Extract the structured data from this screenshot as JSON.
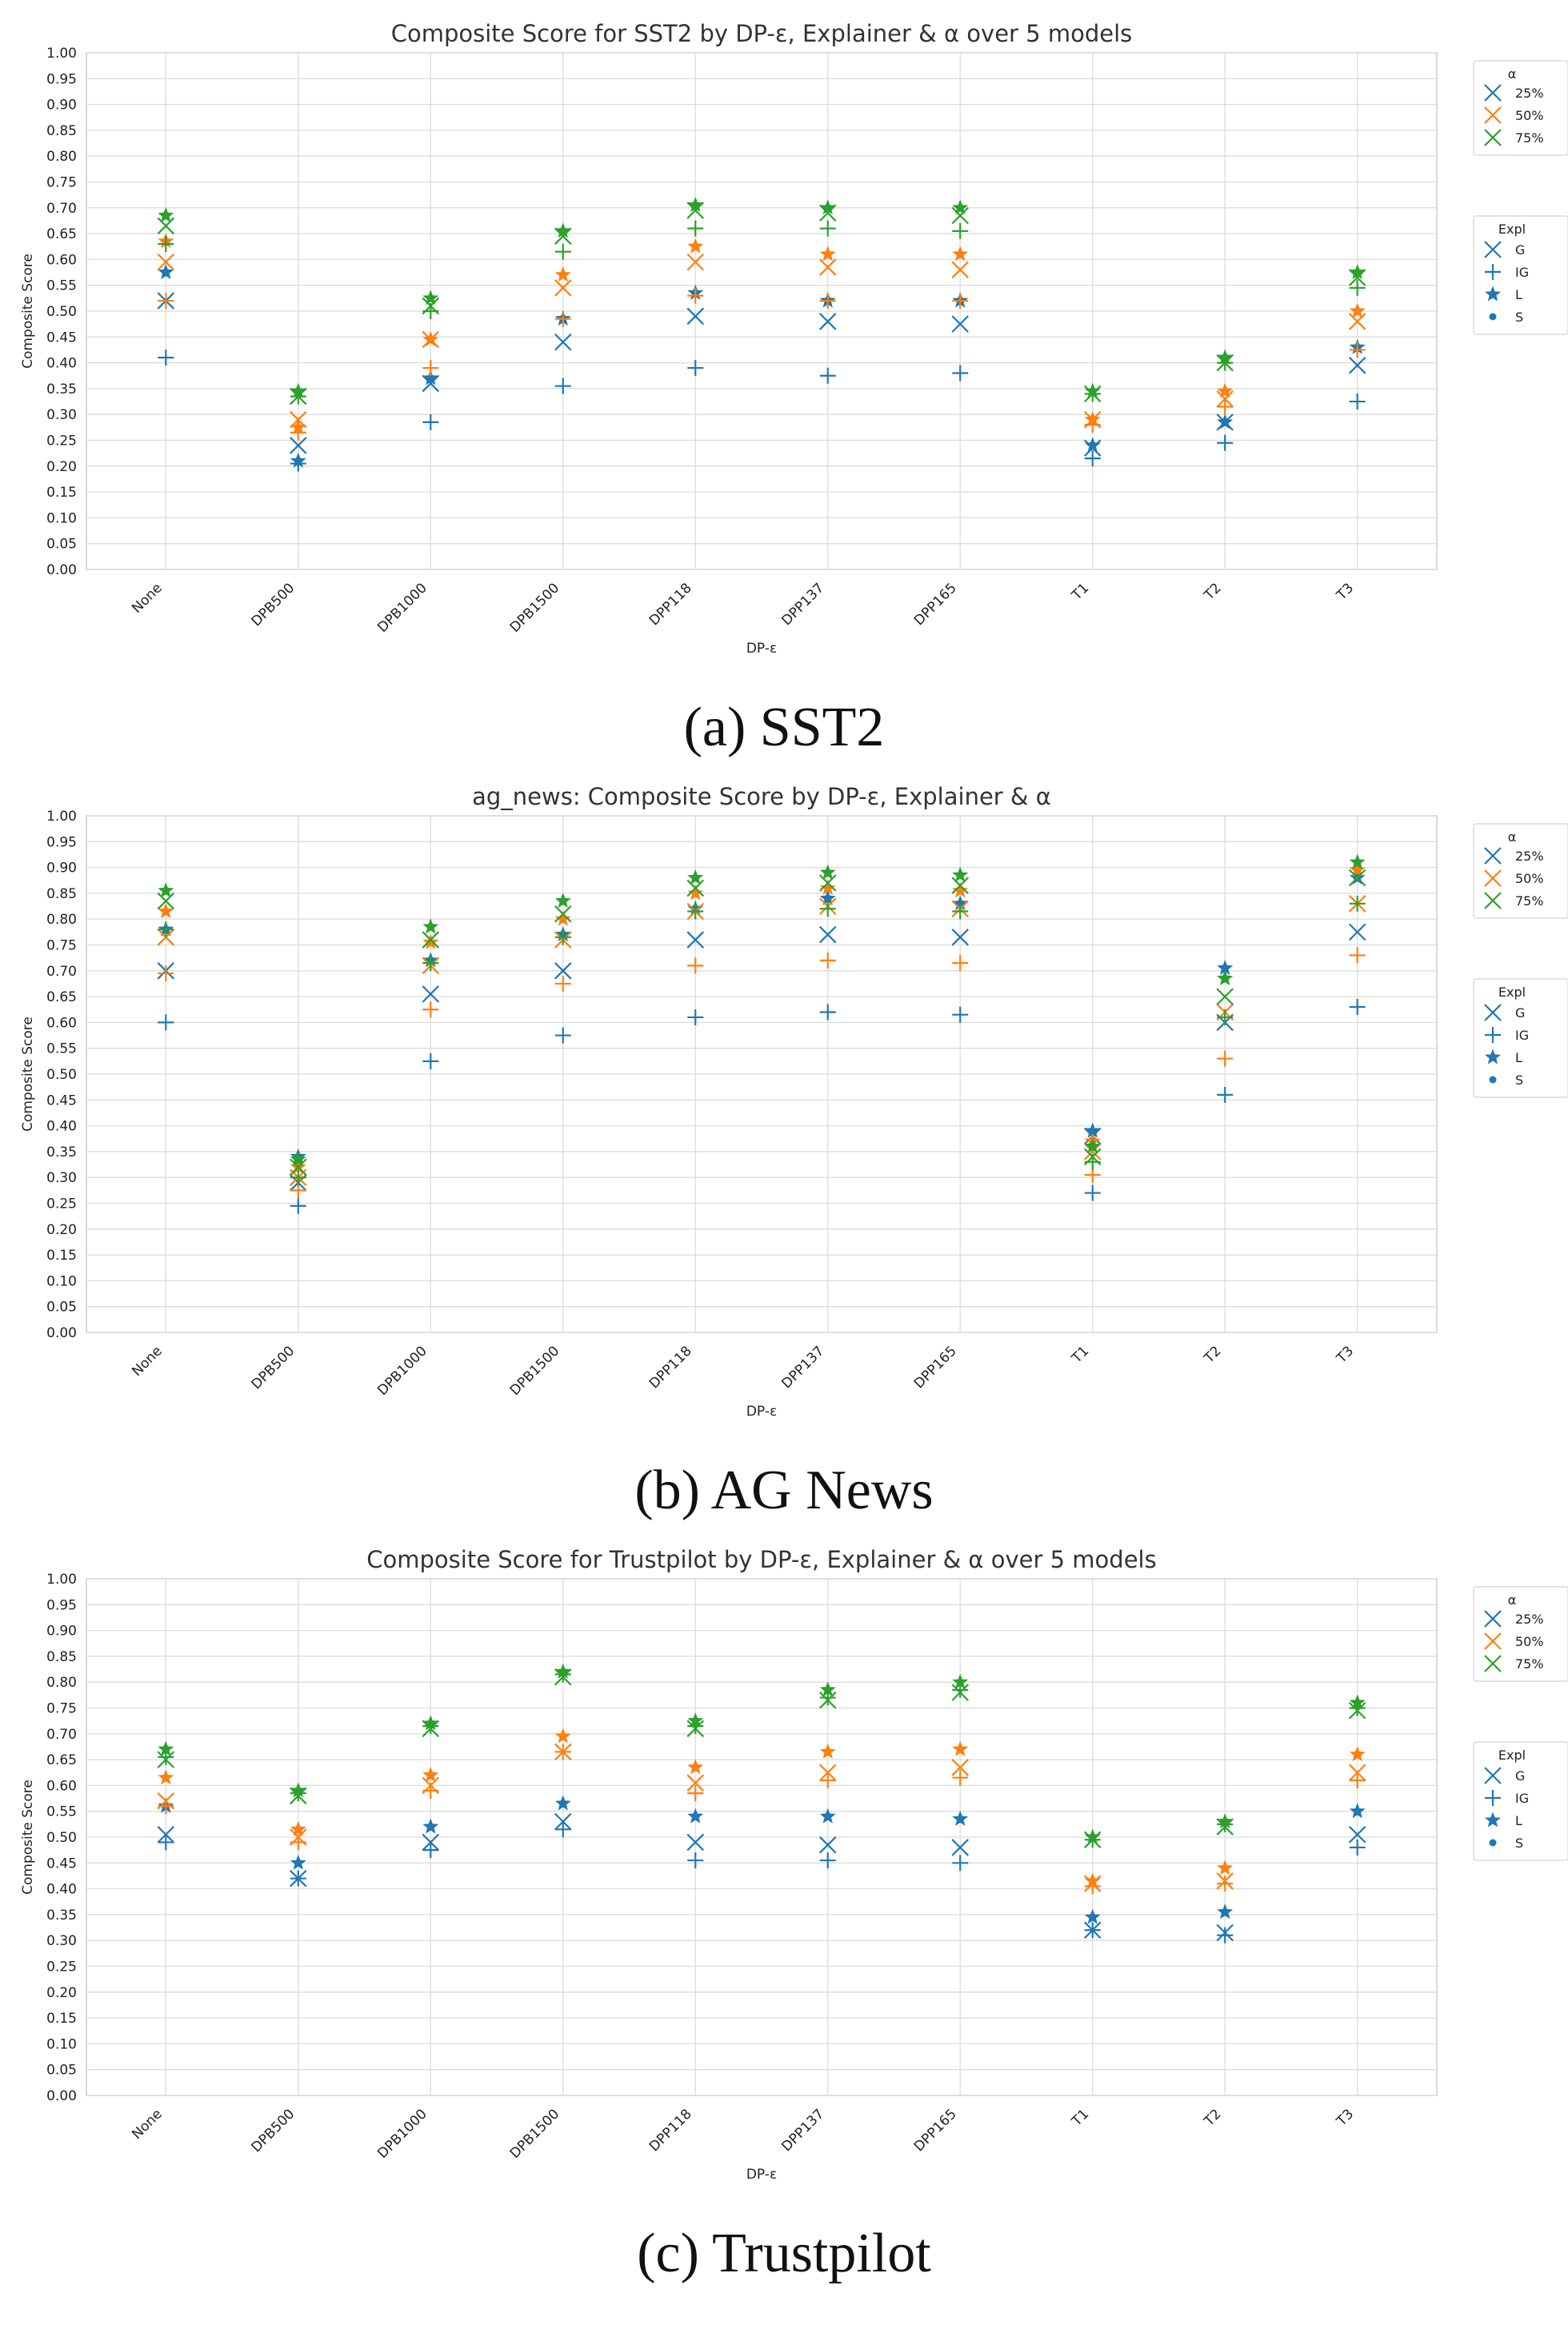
{
  "colors": {
    "25%": "#1f77b4",
    "50%": "#ff7f0e",
    "75%": "#2ca02c"
  },
  "panels": [
    {
      "caption": "(a)  SST2",
      "legend_alpha_title": "α",
      "legend_alpha_items": [
        "25%",
        "50%",
        "75%"
      ],
      "legend_expl_title": "Expl",
      "legend_expl_items": [
        "G",
        "IG",
        "L",
        "S"
      ],
      "chart_data": {
        "type": "scatter",
        "title": "Composite Score for SST2 by DP-ε, Explainer & α over 5 models",
        "xlabel": "DP-ε",
        "ylabel": "Composite Score",
        "ylim": [
          0,
          1
        ],
        "grid": true,
        "legend_position": "right",
        "y_ticks": [
          "0.00",
          "0.05",
          "0.10",
          "0.15",
          "0.20",
          "0.25",
          "0.30",
          "0.35",
          "0.40",
          "0.45",
          "0.50",
          "0.55",
          "0.60",
          "0.65",
          "0.70",
          "0.75",
          "0.80",
          "0.85",
          "0.90",
          "0.95",
          "1.00"
        ],
        "categories": [
          "None",
          "DPB500",
          "DPB1000",
          "DPB1500",
          "DPP118",
          "DPP137",
          "DPP165",
          "T1",
          "T2",
          "T3"
        ],
        "series": [
          {
            "name": "25%",
            "explainer": "G",
            "values": [
              0.52,
              0.24,
              0.36,
              0.44,
              0.49,
              0.48,
              0.475,
              0.235,
              0.285,
              0.395
            ]
          },
          {
            "name": "25%",
            "explainer": "IG",
            "values": [
              0.41,
              0.205,
              0.285,
              0.355,
              0.39,
              0.375,
              0.38,
              0.215,
              0.245,
              0.325
            ]
          },
          {
            "name": "25%",
            "explainer": "L",
            "values": [
              0.575,
              0.21,
              0.37,
              0.485,
              0.535,
              0.52,
              0.52,
              0.24,
              0.285,
              0.43
            ]
          },
          {
            "name": "50%",
            "explainer": "G",
            "values": [
              0.595,
              0.29,
              0.445,
              0.545,
              0.595,
              0.585,
              0.58,
              0.29,
              0.33,
              0.48
            ]
          },
          {
            "name": "50%",
            "explainer": "IG",
            "values": [
              0.52,
              0.265,
              0.39,
              0.485,
              0.53,
              0.52,
              0.52,
              0.28,
              0.315,
              0.425
            ]
          },
          {
            "name": "50%",
            "explainer": "L",
            "values": [
              0.635,
              0.275,
              0.445,
              0.57,
              0.625,
              0.61,
              0.61,
              0.29,
              0.345,
              0.5
            ]
          },
          {
            "name": "75%",
            "explainer": "G",
            "values": [
              0.665,
              0.335,
              0.51,
              0.645,
              0.695,
              0.69,
              0.685,
              0.34,
              0.4,
              0.565
            ]
          },
          {
            "name": "75%",
            "explainer": "IG",
            "values": [
              0.63,
              0.335,
              0.5,
              0.615,
              0.66,
              0.66,
              0.655,
              0.34,
              0.4,
              0.545
            ]
          },
          {
            "name": "75%",
            "explainer": "L",
            "values": [
              0.685,
              0.345,
              0.525,
              0.655,
              0.705,
              0.7,
              0.7,
              0.345,
              0.41,
              0.575
            ]
          }
        ]
      }
    },
    {
      "caption": "(b)  AG News",
      "legend_alpha_title": "α",
      "legend_alpha_items": [
        "25%",
        "50%",
        "75%"
      ],
      "legend_expl_title": "Expl",
      "legend_expl_items": [
        "G",
        "IG",
        "L",
        "S"
      ],
      "chart_data": {
        "type": "scatter",
        "title": "ag_news: Composite Score by DP-ε, Explainer & α",
        "xlabel": "DP-ε",
        "ylabel": "Composite Score",
        "ylim": [
          0,
          1
        ],
        "grid": true,
        "legend_position": "right",
        "y_ticks": [
          "0.00",
          "0.05",
          "0.10",
          "0.15",
          "0.20",
          "0.25",
          "0.30",
          "0.35",
          "0.40",
          "0.45",
          "0.50",
          "0.55",
          "0.60",
          "0.65",
          "0.70",
          "0.75",
          "0.80",
          "0.85",
          "0.90",
          "0.95",
          "1.00"
        ],
        "categories": [
          "None",
          "DPB500",
          "DPB1000",
          "DPB1500",
          "DPP118",
          "DPP137",
          "DPP165",
          "T1",
          "T2",
          "T3"
        ],
        "series": [
          {
            "name": "25%",
            "explainer": "G",
            "values": [
              0.7,
              0.29,
              0.655,
              0.7,
              0.76,
              0.77,
              0.765,
              0.38,
              0.6,
              0.775
            ]
          },
          {
            "name": "25%",
            "explainer": "IG",
            "values": [
              0.6,
              0.245,
              0.525,
              0.575,
              0.61,
              0.62,
              0.615,
              0.27,
              0.46,
              0.63
            ]
          },
          {
            "name": "25%",
            "explainer": "L",
            "values": [
              0.78,
              0.34,
              0.72,
              0.77,
              0.82,
              0.84,
              0.83,
              0.39,
              0.705,
              0.88
            ]
          },
          {
            "name": "50%",
            "explainer": "G",
            "values": [
              0.765,
              0.3,
              0.71,
              0.76,
              0.815,
              0.825,
              0.82,
              0.35,
              0.62,
              0.83
            ]
          },
          {
            "name": "50%",
            "explainer": "IG",
            "values": [
              0.695,
              0.275,
              0.625,
              0.675,
              0.71,
              0.72,
              0.715,
              0.305,
              0.53,
              0.73
            ]
          },
          {
            "name": "50%",
            "explainer": "L",
            "values": [
              0.815,
              0.32,
              0.755,
              0.8,
              0.85,
              0.86,
              0.855,
              0.37,
              0.685,
              0.895
            ]
          },
          {
            "name": "75%",
            "explainer": "G",
            "values": [
              0.835,
              0.32,
              0.76,
              0.81,
              0.86,
              0.87,
              0.865,
              0.34,
              0.65,
              0.88
            ]
          },
          {
            "name": "75%",
            "explainer": "IG",
            "values": [
              0.78,
              0.3,
              0.715,
              0.765,
              0.815,
              0.82,
              0.815,
              0.33,
              0.61,
              0.83
            ]
          },
          {
            "name": "75%",
            "explainer": "L",
            "values": [
              0.855,
              0.335,
              0.785,
              0.835,
              0.88,
              0.89,
              0.885,
              0.36,
              0.685,
              0.91
            ]
          }
        ]
      }
    },
    {
      "caption": "(c)  Trustpilot",
      "legend_alpha_title": "α",
      "legend_alpha_items": [
        "25%",
        "50%",
        "75%"
      ],
      "legend_expl_title": "Expl",
      "legend_expl_items": [
        "G",
        "IG",
        "L",
        "S"
      ],
      "chart_data": {
        "type": "scatter",
        "title": "Composite Score for Trustpilot by DP-ε, Explainer & α over 5 models",
        "xlabel": "DP-ε",
        "ylabel": "Composite Score",
        "ylim": [
          0,
          1
        ],
        "grid": true,
        "legend_position": "right",
        "y_ticks": [
          "0.00",
          "0.05",
          "0.10",
          "0.15",
          "0.20",
          "0.25",
          "0.30",
          "0.35",
          "0.40",
          "0.45",
          "0.50",
          "0.55",
          "0.60",
          "0.65",
          "0.70",
          "0.75",
          "0.80",
          "0.85",
          "0.90",
          "0.95",
          "1.00"
        ],
        "categories": [
          "None",
          "DPB500",
          "DPB1000",
          "DPB1500",
          "DPP118",
          "DPP137",
          "DPP165",
          "T1",
          "T2",
          "T3"
        ],
        "series": [
          {
            "name": "25%",
            "explainer": "G",
            "values": [
              0.505,
              0.42,
              0.49,
              0.53,
              0.49,
              0.485,
              0.48,
              0.32,
              0.315,
              0.505
            ]
          },
          {
            "name": "25%",
            "explainer": "IG",
            "values": [
              0.49,
              0.42,
              0.475,
              0.515,
              0.455,
              0.455,
              0.45,
              0.32,
              0.31,
              0.48
            ]
          },
          {
            "name": "25%",
            "explainer": "L",
            "values": [
              0.56,
              0.45,
              0.52,
              0.565,
              0.54,
              0.54,
              0.535,
              0.345,
              0.355,
              0.55
            ]
          },
          {
            "name": "50%",
            "explainer": "G",
            "values": [
              0.57,
              0.5,
              0.6,
              0.665,
              0.605,
              0.625,
              0.635,
              0.41,
              0.415,
              0.625
            ]
          },
          {
            "name": "50%",
            "explainer": "IG",
            "values": [
              0.56,
              0.49,
              0.59,
              0.665,
              0.585,
              0.61,
              0.615,
              0.405,
              0.41,
              0.61
            ]
          },
          {
            "name": "50%",
            "explainer": "L",
            "values": [
              0.615,
              0.515,
              0.62,
              0.695,
              0.635,
              0.665,
              0.67,
              0.415,
              0.44,
              0.66
            ]
          },
          {
            "name": "75%",
            "explainer": "G",
            "values": [
              0.65,
              0.58,
              0.71,
              0.81,
              0.71,
              0.765,
              0.78,
              0.495,
              0.52,
              0.745
            ]
          },
          {
            "name": "75%",
            "explainer": "IG",
            "values": [
              0.655,
              0.585,
              0.715,
              0.815,
              0.715,
              0.77,
              0.785,
              0.495,
              0.525,
              0.75
            ]
          },
          {
            "name": "75%",
            "explainer": "L",
            "values": [
              0.67,
              0.59,
              0.72,
              0.82,
              0.725,
              0.785,
              0.8,
              0.5,
              0.53,
              0.76
            ]
          }
        ]
      }
    }
  ]
}
